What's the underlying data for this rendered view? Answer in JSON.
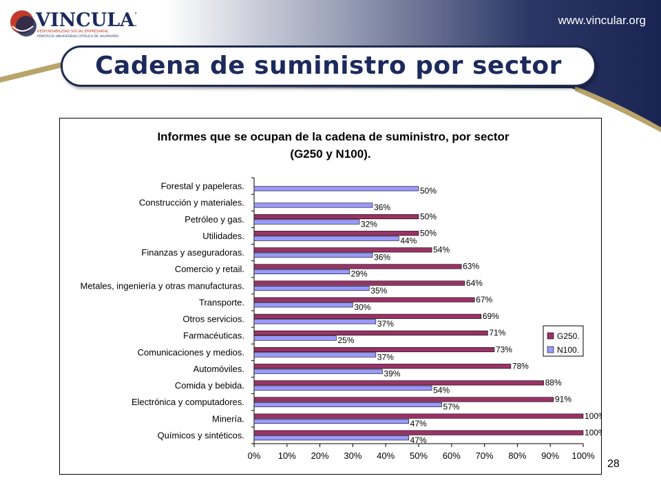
{
  "header": {
    "url": "www.vincular.org",
    "logo_name": "VINCULAR",
    "logo_tagline": "RESPONSABILIDAD SOCIAL EMPRESARIAL",
    "logo_sub": "PONTIFICIA UNIVERSIDAD CATÓLICA DE VALPARAÍSO"
  },
  "slide": {
    "title": "Cadena de suministro por sector",
    "page_number": "28"
  },
  "colors": {
    "g250": "#993366",
    "n100": "#9999ff",
    "title_text": "#1c2a5c",
    "navy": "#1d2a4e"
  },
  "chart_data": {
    "type": "bar",
    "orientation": "horizontal",
    "title_line1": "Informes que se ocupan de la cadena de suministro, por sector",
    "title_line2": "(G250 y N100).",
    "categories": [
      "Forestal y papeleras.",
      "Construcción y materiales.",
      "Petróleo y gas.",
      "Utilidades.",
      "Finanzas y aseguradoras.",
      "Comercio y retail.",
      "Metales, ingeniería y otras manufacturas.",
      "Transporte.",
      "Otros servicios.",
      "Farmacéuticas.",
      "Comunicaciones y medios.",
      "Automóviles.",
      "Comida y bebida.",
      "Electrónica y computadores.",
      "Minería.",
      "Químicos y sintéticos."
    ],
    "series": [
      {
        "name": "G250.",
        "values": [
          null,
          null,
          50,
          50,
          54,
          63,
          64,
          67,
          69,
          71,
          73,
          78,
          88,
          91,
          100,
          100
        ],
        "color": "#993366"
      },
      {
        "name": "N100.",
        "values": [
          50,
          36,
          32,
          44,
          36,
          29,
          35,
          30,
          37,
          25,
          37,
          39,
          54,
          57,
          47,
          47
        ],
        "color": "#9999ff"
      }
    ],
    "xticks": [
      "0%",
      "10%",
      "20%",
      "30%",
      "40%",
      "50%",
      "60%",
      "70%",
      "80%",
      "90%",
      "100%"
    ],
    "xlim": [
      0,
      100
    ],
    "legend_position": "right",
    "grid": false
  }
}
